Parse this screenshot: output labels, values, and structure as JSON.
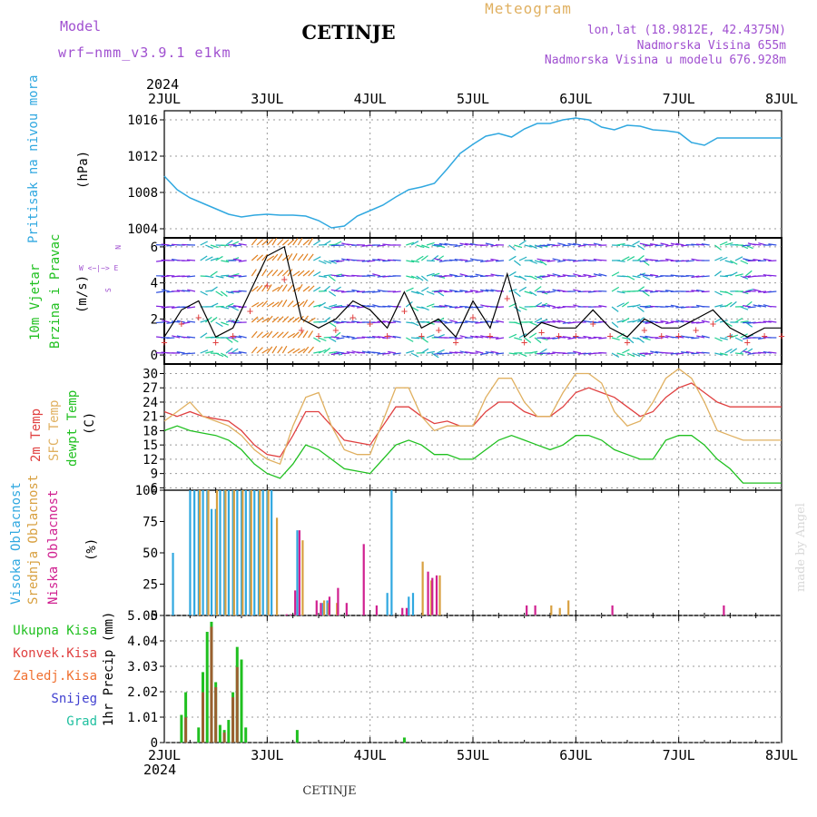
{
  "header": {
    "model_label": "Model",
    "model_name": "wrf−nmm_v3.9.1  e1km",
    "station": "CETINJE",
    "meteogram_label": "Meteogram",
    "lonlat": "lon,lat (18.9812E, 42.4375N)",
    "altitude": "Nadmorska Visina 655m",
    "model_altitude": "Nadmorska Visina u modelu 676.928m",
    "footer_station": "CETINJE",
    "watermark": "made by Angel",
    "year_top": "2024",
    "year_bottom": "2024"
  },
  "colors": {
    "purple": "#a050d0",
    "orange": "#e0b060",
    "cyan": "#30a8e0",
    "green": "#20c020",
    "red": "#e04040",
    "tan": "#d8a040",
    "magenta": "#d02090",
    "blue": "#4040d0"
  },
  "panel_labels": {
    "pressure": [
      "Pritisak na nivou mora",
      "(hPa)"
    ],
    "wind": [
      "10m Vjetar",
      "Brzina i Pravac",
      "(m/s)"
    ],
    "wind_compass": [
      "N",
      "W  <−|−>  E",
      "S"
    ],
    "temp": [
      "2m Temp",
      "SFC Temp",
      "dewpt Temp",
      "(C)"
    ],
    "cloud": [
      "Visoka Oblacnost",
      "Srednja Oblacnost",
      "Niska Oblacnost",
      "(%)"
    ],
    "precip_legend": [
      "Ukupna Kisa",
      "Konvek.Kisa",
      "Zaledj.Kisa",
      "Snijeg",
      "Grad"
    ],
    "precip_axis": "1hr Precip (mm)"
  },
  "chart_data": [
    {
      "type": "line",
      "name": "pressure",
      "x_labels": [
        "2JUL",
        "3JUL",
        "4JUL",
        "5JUL",
        "6JUL",
        "7JUL",
        "8JUL"
      ],
      "yticks": [
        "1004",
        "1008",
        "1012",
        "1016"
      ],
      "ylim": [
        1003,
        1017
      ],
      "x": [
        0,
        3,
        6,
        9,
        12,
        15,
        18,
        21,
        24,
        27,
        30,
        33,
        36,
        39,
        42,
        45,
        48,
        51,
        54,
        57,
        60,
        63,
        66,
        69,
        72,
        75,
        78,
        81,
        84,
        87,
        90,
        93,
        96,
        99,
        102,
        105,
        108,
        111,
        114,
        117,
        120,
        123,
        126,
        129,
        132,
        135,
        138,
        141,
        144
      ],
      "values": [
        1009.8,
        1008.3,
        1007.4,
        1006.8,
        1006.2,
        1005.6,
        1005.3,
        1005.5,
        1005.6,
        1005.5,
        1005.5,
        1005.4,
        1004.9,
        1004.1,
        1004.3,
        1005.4,
        1006.0,
        1006.6,
        1007.5,
        1008.3,
        1008.6,
        1009.0,
        1010.6,
        1012.3,
        1013.3,
        1014.2,
        1014.5,
        1014.1,
        1015.0,
        1015.6,
        1015.6,
        1016.0,
        1016.2,
        1016.0,
        1015.2,
        1014.9,
        1015.4,
        1015.3,
        1014.9,
        1014.8,
        1014.6,
        1013.5,
        1013.2,
        1014.0,
        1014.0,
        1014.0,
        1014.0,
        1014.0,
        1014.0
      ]
    },
    {
      "type": "line",
      "name": "wind",
      "x_labels": [
        "2JUL",
        "3JUL",
        "4JUL",
        "5JUL",
        "6JUL",
        "7JUL",
        "8JUL"
      ],
      "yticks": [
        "0",
        "2",
        "4",
        "6"
      ],
      "ylim": [
        -0.5,
        6.5
      ],
      "x": [
        0,
        4,
        8,
        12,
        16,
        20,
        24,
        28,
        32,
        36,
        40,
        44,
        48,
        52,
        56,
        60,
        64,
        68,
        72,
        76,
        80,
        84,
        88,
        92,
        96,
        100,
        104,
        108,
        112,
        116,
        120,
        124,
        128,
        132,
        136,
        140,
        144
      ],
      "values": [
        1.0,
        2.5,
        3.0,
        1.0,
        1.5,
        3.5,
        5.5,
        6.0,
        2.0,
        1.5,
        2.0,
        3.0,
        2.5,
        1.5,
        3.5,
        1.5,
        2.0,
        1.0,
        3.0,
        1.5,
        4.5,
        1.0,
        1.8,
        1.5,
        1.5,
        2.5,
        1.5,
        1.0,
        2.0,
        1.5,
        1.5,
        2.0,
        2.5,
        1.5,
        1.0,
        1.5,
        1.5
      ]
    },
    {
      "type": "line",
      "name": "temperature",
      "x_labels": [
        "2JUL",
        "3JUL",
        "4JUL",
        "5JUL",
        "6JUL",
        "7JUL",
        "8JUL"
      ],
      "yticks": [
        "6",
        "9",
        "12",
        "15",
        "18",
        "21",
        "24",
        "27",
        "30"
      ],
      "ylim": [
        5.5,
        32
      ],
      "x": [
        0,
        3,
        6,
        9,
        12,
        15,
        18,
        21,
        24,
        27,
        30,
        33,
        36,
        39,
        42,
        45,
        48,
        51,
        54,
        57,
        60,
        63,
        66,
        69,
        72,
        75,
        78,
        81,
        84,
        87,
        90,
        93,
        96,
        99,
        102,
        105,
        108,
        111,
        114,
        117,
        120,
        123,
        126,
        129,
        132,
        135,
        138,
        141,
        144
      ],
      "series": [
        {
          "name": "2m Temp",
          "values": [
            22,
            21,
            22,
            21,
            20.5,
            20,
            18,
            15,
            13,
            12.5,
            17,
            22,
            22,
            19,
            16,
            15.5,
            15,
            19,
            23,
            23,
            21,
            19.5,
            20,
            19,
            19,
            22,
            24,
            24,
            22,
            21,
            21,
            23,
            26,
            27,
            26,
            25,
            23,
            21,
            22,
            25,
            27,
            28,
            26,
            24,
            23,
            23,
            23,
            23,
            23
          ]
        },
        {
          "name": "SFC Temp",
          "values": [
            20,
            22,
            24,
            21,
            20,
            19,
            17,
            14,
            12,
            11,
            19,
            25,
            26,
            19,
            14,
            13,
            13,
            20,
            27,
            27,
            21,
            18,
            19,
            19,
            19,
            25,
            29,
            29,
            24,
            21,
            21,
            26,
            30,
            30,
            28,
            22,
            19,
            20,
            24,
            29,
            31,
            29,
            24,
            18,
            17,
            16,
            16,
            16,
            16
          ]
        },
        {
          "name": "dewpt Temp",
          "values": [
            18,
            19,
            18,
            17.5,
            17,
            16,
            14,
            11,
            9,
            8,
            11,
            15,
            14,
            12,
            10,
            9.5,
            9,
            12,
            15,
            16,
            15,
            13,
            13,
            12,
            12,
            14,
            16,
            17,
            16,
            15,
            14,
            15,
            17,
            17,
            16,
            14,
            13,
            12,
            12,
            16,
            17,
            17,
            15,
            12,
            10,
            7,
            7,
            7,
            7
          ]
        }
      ]
    },
    {
      "type": "bar",
      "name": "cloud",
      "x_labels": [
        "2JUL",
        "3JUL",
        "4JUL",
        "5JUL",
        "6JUL",
        "7JUL",
        "8JUL"
      ],
      "yticks": [
        "0",
        "25",
        "50",
        "75",
        "100"
      ],
      "ylim": [
        0,
        100
      ],
      "series": [
        {
          "name": "Visoka Oblacnost",
          "x": [
            2,
            6,
            7,
            8,
            9,
            10,
            11,
            12,
            13,
            14,
            15,
            16,
            17,
            18,
            19,
            20,
            21,
            22,
            23,
            24,
            25,
            31,
            37,
            38,
            52,
            53,
            57,
            58
          ],
          "values": [
            50,
            100,
            100,
            100,
            100,
            100,
            85,
            85,
            100,
            100,
            100,
            100,
            100,
            100,
            100,
            100,
            100,
            100,
            100,
            100,
            100,
            68,
            10,
            12,
            18,
            100,
            15,
            18
          ]
        },
        {
          "name": "Srednja Oblacnost",
          "x": [
            8,
            10,
            12,
            14,
            16,
            18,
            20,
            22,
            24,
            26,
            32,
            37,
            38,
            40,
            60,
            62,
            64,
            90,
            92,
            94
          ],
          "values": [
            100,
            100,
            100,
            100,
            100,
            100,
            100,
            100,
            100,
            78,
            60,
            12,
            10,
            10,
            43,
            28,
            32,
            8,
            6,
            12
          ]
        },
        {
          "name": "Niska Oblacnost",
          "x": [
            28,
            29,
            30,
            31,
            35,
            36,
            38,
            40,
            42,
            46,
            49,
            55,
            56,
            61,
            62,
            63,
            84,
            86,
            104,
            130
          ],
          "values": [
            1,
            1,
            20,
            68,
            12,
            10,
            15,
            22,
            10,
            57,
            8,
            6,
            6,
            35,
            30,
            32,
            8,
            8,
            8,
            8
          ]
        }
      ]
    },
    {
      "type": "bar",
      "name": "precipitation",
      "x_labels": [
        "2JUL",
        "3JUL",
        "4JUL",
        "5JUL",
        "6JUL",
        "7JUL",
        "8JUL"
      ],
      "yticks": [
        "0",
        "1.01",
        "2.02",
        "3.03",
        "4.04",
        "5.05"
      ],
      "ylim": [
        0,
        5.05
      ],
      "series": [
        {
          "name": "Ukupna Kisa",
          "x": [
            4,
            5,
            8,
            9,
            10,
            11,
            12,
            13,
            14,
            15,
            16,
            17,
            18,
            19,
            31,
            56
          ],
          "values": [
            1.1,
            2.0,
            0.6,
            2.8,
            4.4,
            4.8,
            2.4,
            0.7,
            0.5,
            0.9,
            2.0,
            3.8,
            3.3,
            0.6,
            0.5,
            0.2
          ]
        },
        {
          "name": "Konvek.Kisa",
          "x": [
            5,
            9,
            11,
            12,
            14,
            16,
            17
          ],
          "values": [
            1.0,
            2.0,
            4.6,
            2.2,
            0.4,
            1.8,
            3.0
          ]
        },
        {
          "name": "Zaledj.Kisa",
          "x": [],
          "values": []
        },
        {
          "name": "Snijeg",
          "x": [],
          "values": []
        },
        {
          "name": "Grad",
          "x": [],
          "values": []
        }
      ]
    }
  ]
}
